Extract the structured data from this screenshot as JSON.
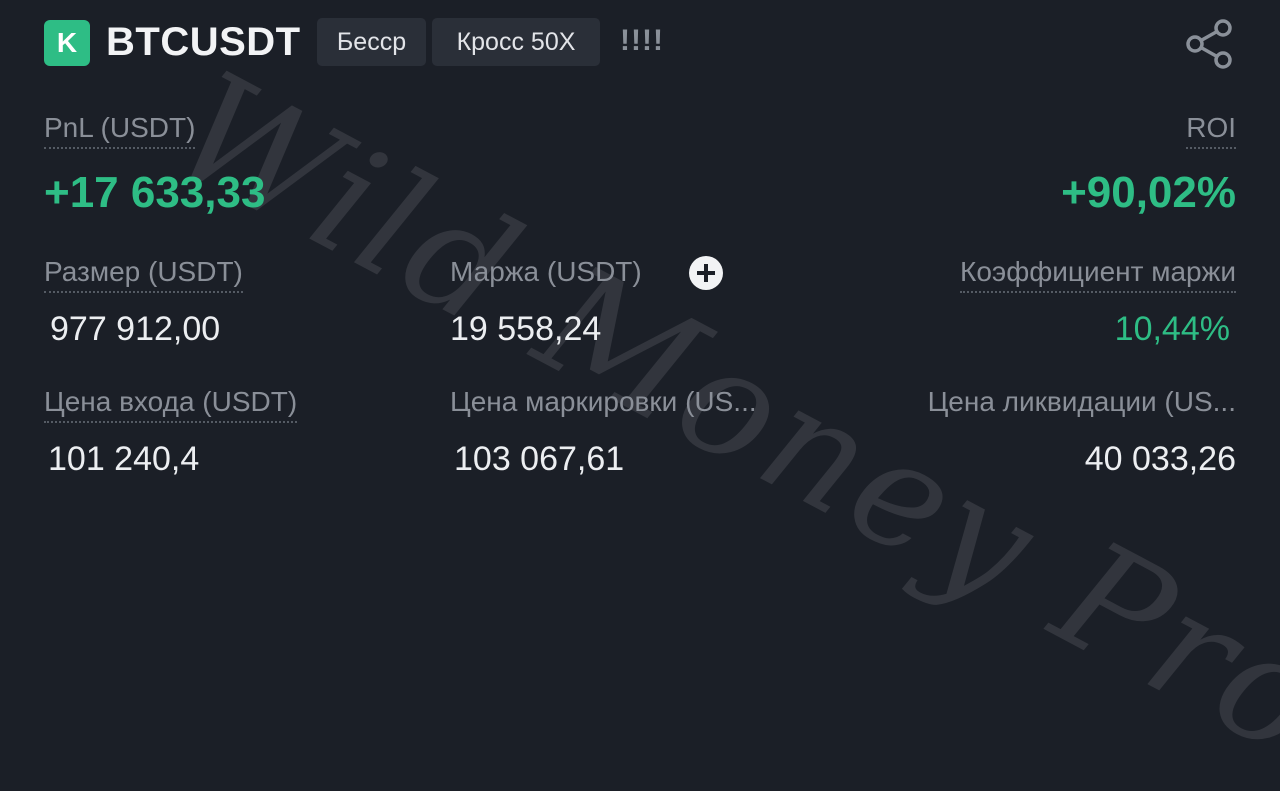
{
  "header": {
    "exchange_badge": "K",
    "symbol": "BTCUSDT",
    "contract_type": "Бесср",
    "margin_mode": "Кросс 50X",
    "signal_bars": "!!!!"
  },
  "watermark": "Wild Money Pro",
  "pnl": {
    "label": "PnL (USDT)",
    "value": "+17 633,33"
  },
  "roi": {
    "label": "ROI",
    "value": "+90,02%"
  },
  "size": {
    "label": "Размер (USDT)",
    "value": "977 912,00"
  },
  "margin": {
    "label": "Маржа (USDT)",
    "value": "19 558,24"
  },
  "margin_ratio": {
    "label": "Коэффициент маржи",
    "value": "10,44%"
  },
  "entry_price": {
    "label": "Цена входа (USDT)",
    "value": "101 240,4"
  },
  "mark_price": {
    "label": "Цена маркировки (US...",
    "value": "103 067,61"
  },
  "liq_price": {
    "label": "Цена ликвидации (US...",
    "value": "40 033,26"
  },
  "colors": {
    "profit": "#2ebd85",
    "background": "#1b1f27",
    "label": "#8a8f98"
  },
  "icons": {
    "share": "share-icon",
    "add_margin": "plus-circle-icon"
  }
}
